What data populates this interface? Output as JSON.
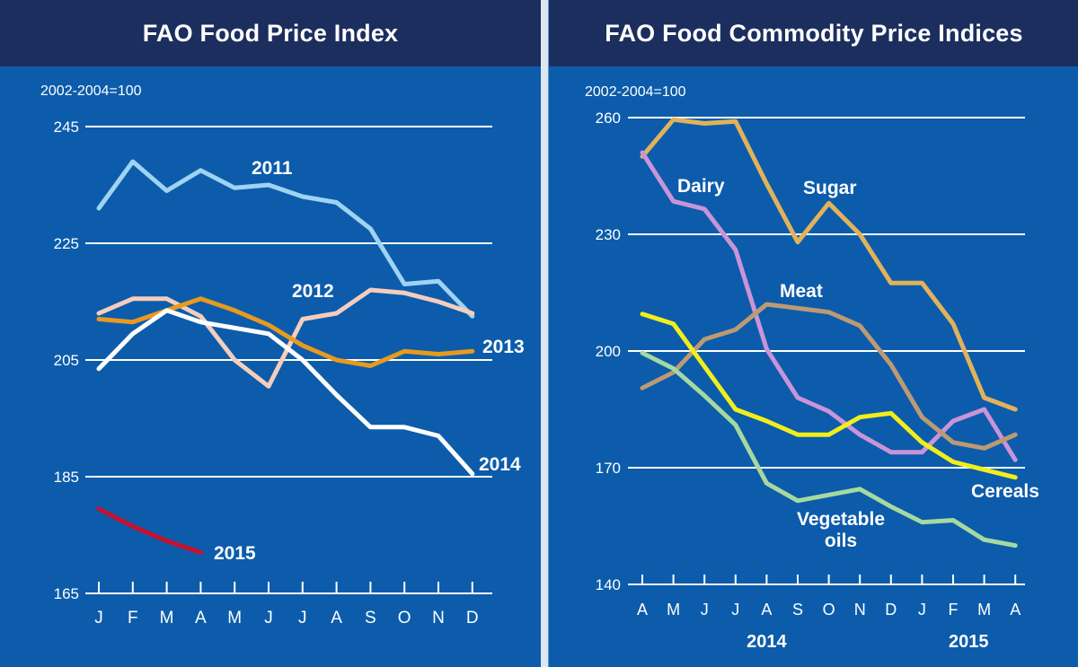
{
  "chart_data": [
    {
      "type": "line",
      "title": "FAO Food Price Index",
      "unit_label": "2002-2004=100",
      "ylim": [
        165,
        245
      ],
      "yticks": [
        245,
        225,
        205,
        185,
        165
      ],
      "grid": true,
      "categories": [
        "J",
        "F",
        "M",
        "A",
        "M",
        "J",
        "J",
        "A",
        "S",
        "O",
        "N",
        "D"
      ],
      "series": [
        {
          "name": "2011",
          "color": "#9fd3f3",
          "values": [
            231,
            239,
            234,
            237.5,
            234.5,
            235,
            233,
            232,
            227.5,
            218,
            218.5,
            212.5
          ]
        },
        {
          "name": "2012",
          "color": "#f5cdbd",
          "values": [
            213,
            215.5,
            215.5,
            212.5,
            205,
            200.5,
            212,
            213,
            217,
            216.5,
            215,
            213
          ]
        },
        {
          "name": "2013",
          "color": "#e89a1e",
          "values": [
            212,
            211.5,
            213.5,
            215.5,
            213.5,
            211,
            207.5,
            205,
            204,
            206.5,
            206,
            206.5
          ]
        },
        {
          "name": "2014",
          "color": "#ffffff",
          "values": [
            203.5,
            209.5,
            213.5,
            211.5,
            210.5,
            209.5,
            205,
            199,
            193.5,
            193.5,
            192,
            185.5
          ]
        },
        {
          "name": "2015",
          "color": "#c8102e",
          "values": [
            179.5,
            176.5,
            174,
            172,
            null,
            null,
            null,
            null,
            null,
            null,
            null,
            null
          ]
        }
      ]
    },
    {
      "type": "line",
      "title": "FAO Food Commodity Price Indices",
      "unit_label": "2002-2004=100",
      "ylim": [
        140,
        260
      ],
      "yticks": [
        260,
        230,
        200,
        170,
        140
      ],
      "grid": true,
      "categories": [
        "A",
        "M",
        "J",
        "J",
        "A",
        "S",
        "O",
        "N",
        "D",
        "J",
        "F",
        "M",
        "A"
      ],
      "year_labels": [
        {
          "text": "2014",
          "at_index": 4
        },
        {
          "text": "2015",
          "at_index": 10.5
        }
      ],
      "series": [
        {
          "name": "Sugar",
          "color": "#e2b25a",
          "values": [
            250,
            259.5,
            258.5,
            259,
            243,
            228,
            238,
            230,
            217.5,
            217.5,
            207,
            188,
            185
          ]
        },
        {
          "name": "Dairy",
          "color": "#c994d8",
          "values": [
            251,
            238.5,
            236.5,
            226,
            200.5,
            188,
            184.5,
            178.5,
            174,
            174,
            182,
            185,
            172
          ]
        },
        {
          "name": "Meat",
          "color": "#bd9a72",
          "values": [
            190.5,
            194.5,
            203,
            205.5,
            212,
            211,
            210,
            206.5,
            196.5,
            183,
            176.5,
            175,
            178.5
          ]
        },
        {
          "name": "Cereals",
          "color": "#f2ee1b",
          "values": [
            209.5,
            207,
            196,
            185,
            182,
            178.5,
            178.5,
            183,
            184,
            176.5,
            171.5,
            169.5,
            167.5
          ]
        },
        {
          "name": "Vegetable oils",
          "color": "#a6d9a0",
          "values": [
            199.5,
            195.5,
            188.5,
            181,
            166,
            161.5,
            163,
            164.5,
            160,
            156,
            156.5,
            151.5,
            150
          ]
        }
      ]
    }
  ]
}
